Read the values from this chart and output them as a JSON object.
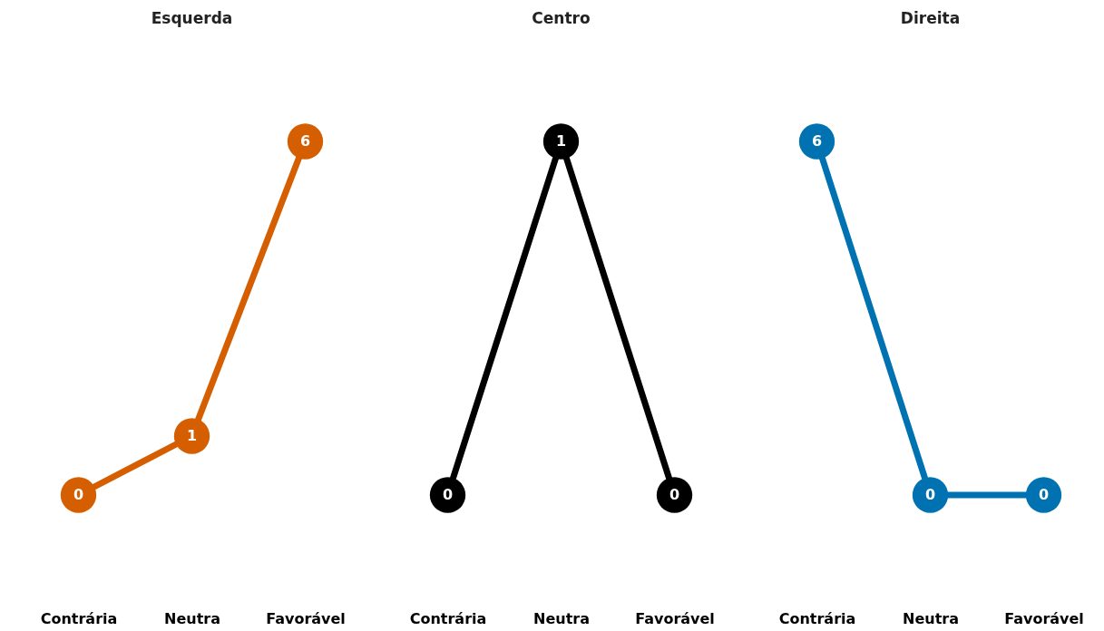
{
  "chart_data": [
    {
      "type": "line",
      "title": "Esquerda",
      "categories": [
        "Contrária",
        "Neutra",
        "Favorável"
      ],
      "series": [
        {
          "color": "#d55e00",
          "values": [
            0,
            1,
            6
          ]
        }
      ],
      "data_labels": true,
      "marker": "circle",
      "tick_labels": "x"
    },
    {
      "type": "line",
      "title": "Centro",
      "categories": [
        "Contrária",
        "Neutra",
        "Favorável"
      ],
      "series": [
        {
          "color": "#000000",
          "values": [
            0,
            1,
            0
          ]
        }
      ],
      "data_labels": true,
      "marker": "circle",
      "tick_labels": "x"
    },
    {
      "type": "line",
      "title": "Direita",
      "categories": [
        "Contrária",
        "Neutra",
        "Favorável"
      ],
      "series": [
        {
          "color": "#0072b2",
          "values": [
            6,
            0,
            0
          ]
        }
      ],
      "data_labels": true,
      "marker": "circle",
      "tick_labels": "x"
    }
  ]
}
